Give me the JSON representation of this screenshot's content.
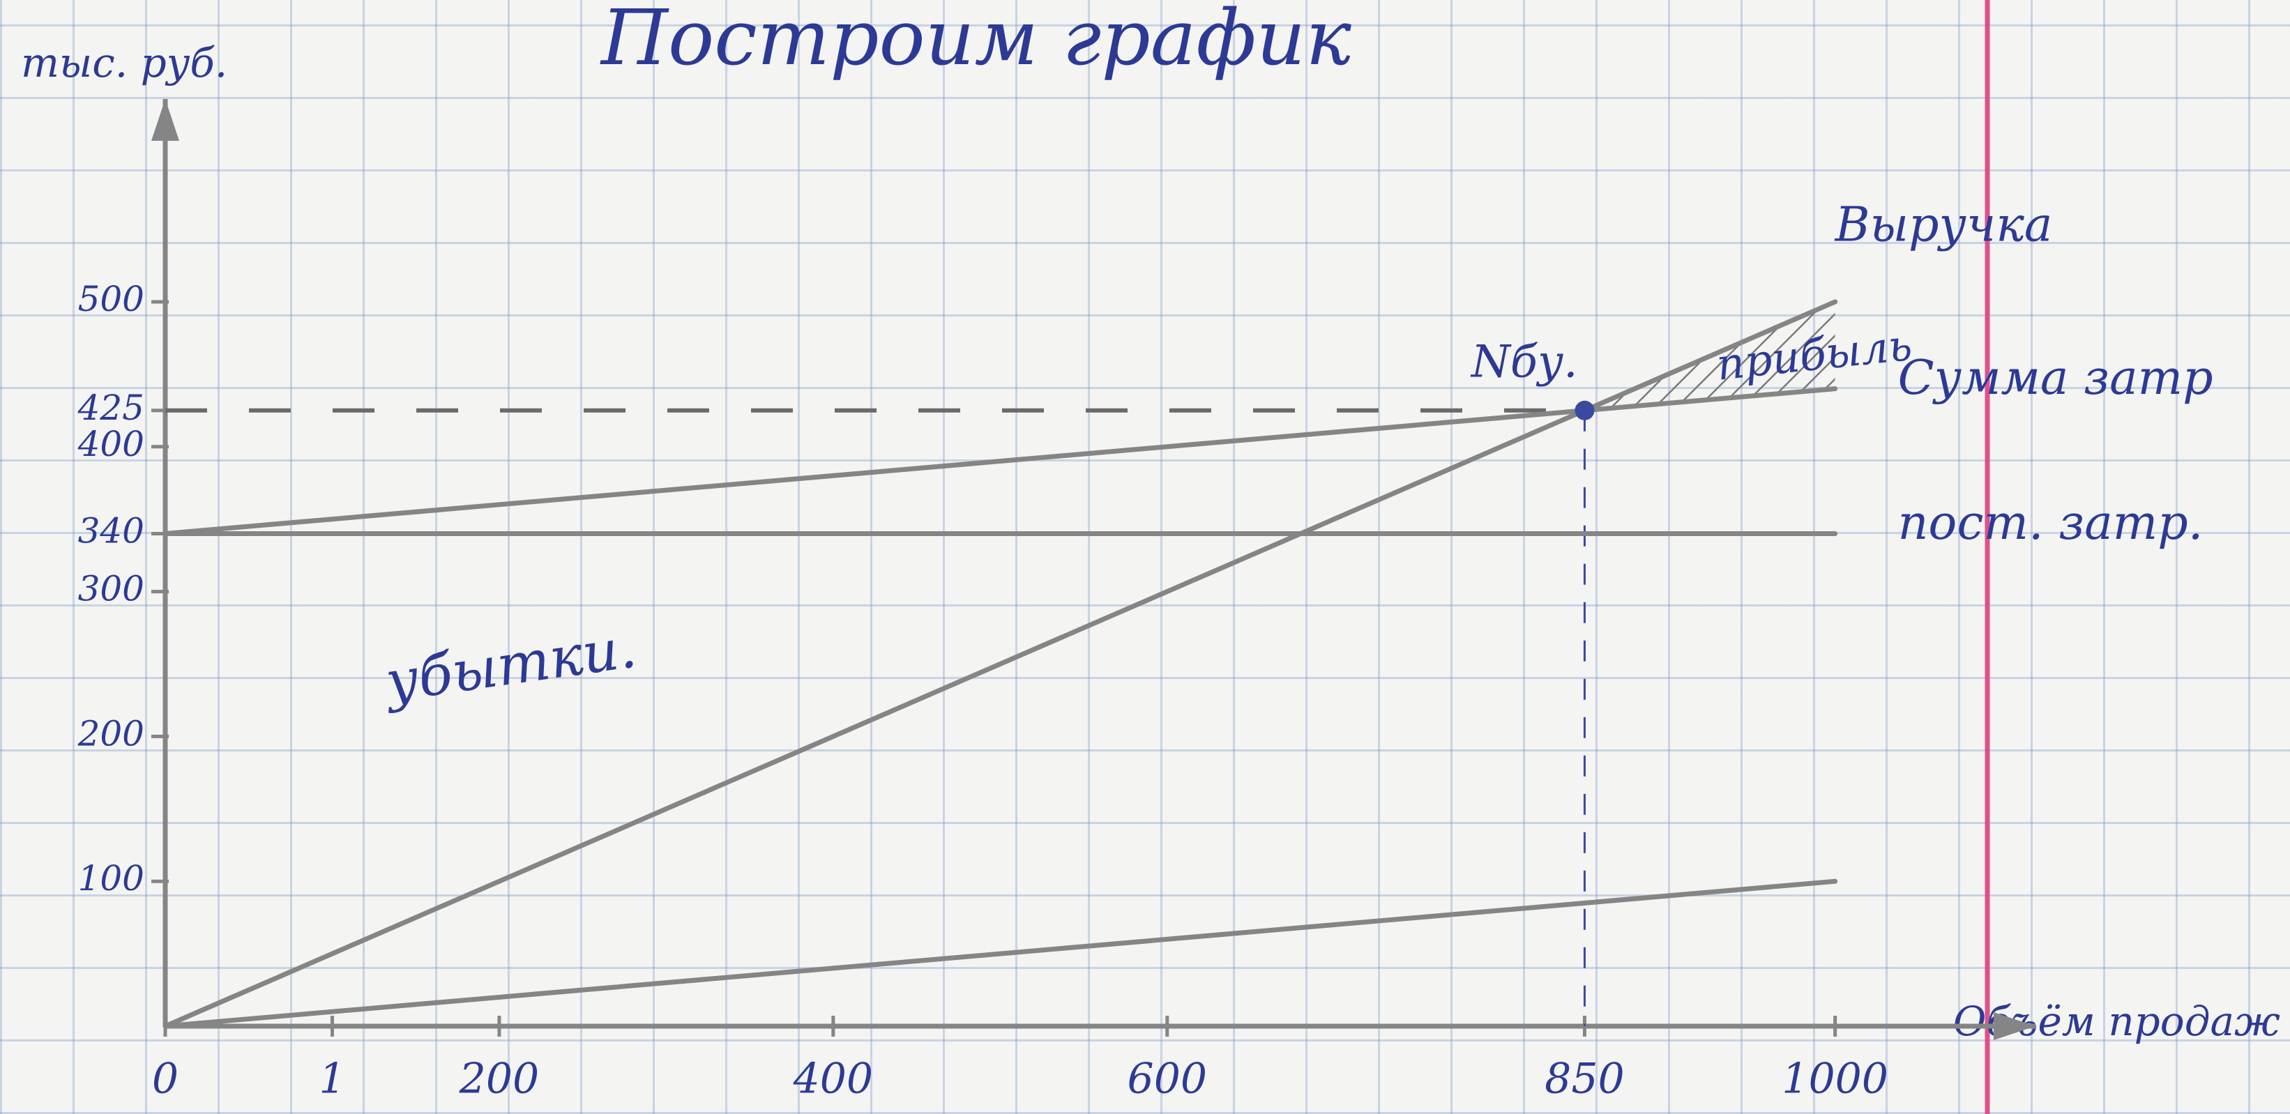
{
  "chart_data": {
    "type": "line",
    "title": "Построим график",
    "y_label": "тыс. руб.",
    "x_label": "Объём продаж",
    "x": [
      0,
      850,
      1000
    ],
    "series": [
      {
        "name": "Выручка",
        "color": "#858585",
        "values": [
          0,
          425,
          500
        ]
      },
      {
        "name": "Сумма затр",
        "color": "#858585",
        "values": [
          340,
          425,
          440
        ]
      },
      {
        "name": "пост. затр.",
        "color": "#858585",
        "values": [
          340,
          340,
          340
        ]
      },
      {
        "color": "#858585",
        "values": [
          0,
          85,
          100
        ]
      }
    ],
    "xlim": [
      0,
      1120
    ],
    "ylim": [
      0,
      640
    ],
    "xticks": [
      0,
      {
        "value": 100,
        "label": "1"
      },
      200,
      400,
      600,
      850,
      1000
    ],
    "yticks": [
      100,
      200,
      300,
      340,
      400,
      425,
      500
    ],
    "annotations": {
      "profit": "прибыль",
      "loss": "убытки.",
      "break_even": "Nбу."
    }
  }
}
